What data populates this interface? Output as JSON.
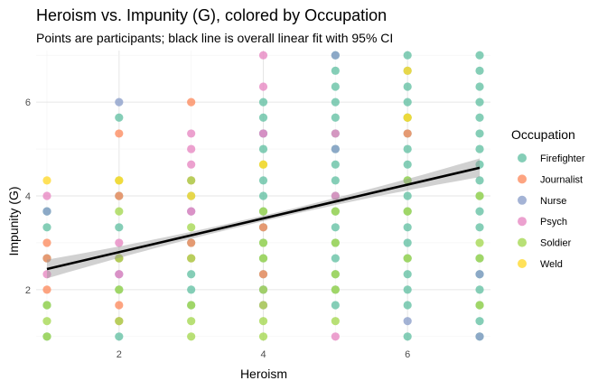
{
  "chart_data": {
    "type": "scatter",
    "title": "Heroism vs. Impunity (G), colored by Occupation",
    "subtitle": "Points are participants; black line is overall linear fit with 95% CI",
    "xlabel": "Heroism",
    "ylabel": "Impunity (G)",
    "xlim": [
      0.85,
      7.15
    ],
    "ylim": [
      0.9,
      7.1
    ],
    "x_ticks": [
      2,
      4,
      6
    ],
    "y_ticks": [
      2,
      4,
      6
    ],
    "legend": {
      "title": "Occupation",
      "position": "right",
      "entries": [
        {
          "name": "Firefighter",
          "color": "#66c2a5"
        },
        {
          "name": "Journalist",
          "color": "#fc8d62"
        },
        {
          "name": "Nurse",
          "color": "#8da0cb"
        },
        {
          "name": "Psych",
          "color": "#e78ac3"
        },
        {
          "name": "Soldier",
          "color": "#a6d854"
        },
        {
          "name": "Weld",
          "color": "#ffd92f"
        }
      ]
    },
    "fit": {
      "intercept": 2.08,
      "slope": 0.36,
      "ci_halfwidth_ends": 0.2,
      "ci_halfwidth_center": 0.06
    },
    "series": [
      {
        "name": "Firefighter",
        "points": [
          [
            1,
            3.67
          ],
          [
            1,
            3.33
          ],
          [
            1,
            2.67
          ],
          [
            1,
            1.67
          ],
          [
            1,
            1
          ],
          [
            2,
            5.67
          ],
          [
            2,
            4
          ],
          [
            2,
            3.33
          ],
          [
            2,
            2.67
          ],
          [
            2,
            2
          ],
          [
            2,
            1
          ],
          [
            3,
            4
          ],
          [
            3,
            3
          ],
          [
            3,
            2.33
          ],
          [
            3,
            2
          ],
          [
            3,
            1.67
          ],
          [
            4,
            6
          ],
          [
            4,
            5.67
          ],
          [
            4,
            5.33
          ],
          [
            4,
            5
          ],
          [
            4,
            4.33
          ],
          [
            4,
            4
          ],
          [
            4,
            3.67
          ],
          [
            4,
            3.33
          ],
          [
            4,
            3
          ],
          [
            4,
            2.67
          ],
          [
            4,
            2.33
          ],
          [
            4,
            2
          ],
          [
            4,
            1.67
          ],
          [
            5,
            7
          ],
          [
            5,
            6.67
          ],
          [
            5,
            6.33
          ],
          [
            5,
            6
          ],
          [
            5,
            5.67
          ],
          [
            5,
            5.33
          ],
          [
            5,
            5
          ],
          [
            5,
            4.67
          ],
          [
            5,
            4.33
          ],
          [
            5,
            4
          ],
          [
            5,
            3.67
          ],
          [
            5,
            3.33
          ],
          [
            5,
            3
          ],
          [
            5,
            2.67
          ],
          [
            5,
            2.33
          ],
          [
            5,
            2
          ],
          [
            5,
            1.67
          ],
          [
            6,
            7
          ],
          [
            6,
            6.67
          ],
          [
            6,
            6.33
          ],
          [
            6,
            6
          ],
          [
            6,
            5.67
          ],
          [
            6,
            5.33
          ],
          [
            6,
            5
          ],
          [
            6,
            4.67
          ],
          [
            6,
            4.33
          ],
          [
            6,
            4
          ],
          [
            6,
            3.67
          ],
          [
            6,
            3.33
          ],
          [
            6,
            3
          ],
          [
            6,
            2.67
          ],
          [
            6,
            2.33
          ],
          [
            6,
            2
          ],
          [
            6,
            1.67
          ],
          [
            6,
            1
          ],
          [
            7,
            7
          ],
          [
            7,
            6.67
          ],
          [
            7,
            6.33
          ],
          [
            7,
            6
          ],
          [
            7,
            5.67
          ],
          [
            7,
            5.33
          ],
          [
            7,
            5
          ],
          [
            7,
            4.67
          ],
          [
            7,
            4.33
          ],
          [
            7,
            4
          ],
          [
            7,
            3.67
          ],
          [
            7,
            3.33
          ],
          [
            7,
            2.67
          ],
          [
            7,
            2.33
          ],
          [
            7,
            2
          ],
          [
            7,
            1.67
          ],
          [
            7,
            1.33
          ],
          [
            7,
            1
          ]
        ]
      },
      {
        "name": "Journalist",
        "points": [
          [
            1,
            3
          ],
          [
            1,
            2.67
          ],
          [
            1,
            2
          ],
          [
            2,
            5.33
          ],
          [
            2,
            4
          ],
          [
            2,
            2.67
          ],
          [
            2,
            1.67
          ],
          [
            2,
            1.33
          ],
          [
            3,
            6
          ],
          [
            3,
            4.33
          ],
          [
            3,
            3
          ],
          [
            3,
            2.67
          ],
          [
            4,
            3.33
          ],
          [
            4,
            2.33
          ],
          [
            6,
            5.33
          ]
        ]
      },
      {
        "name": "Nurse",
        "points": [
          [
            1,
            3.67
          ],
          [
            2,
            6
          ],
          [
            2,
            2.33
          ],
          [
            3,
            3.67
          ],
          [
            4,
            5.33
          ],
          [
            4,
            2
          ],
          [
            5,
            7
          ],
          [
            5,
            5
          ],
          [
            6,
            1.33
          ],
          [
            7,
            2.33
          ],
          [
            7,
            1
          ]
        ]
      },
      {
        "name": "Psych",
        "points": [
          [
            1,
            4
          ],
          [
            1,
            2.33
          ],
          [
            2,
            3
          ],
          [
            2,
            2.33
          ],
          [
            3,
            5.33
          ],
          [
            3,
            5
          ],
          [
            3,
            4.67
          ],
          [
            3,
            3.67
          ],
          [
            4,
            7
          ],
          [
            4,
            6.33
          ],
          [
            4,
            5.33
          ],
          [
            4,
            1.67
          ],
          [
            5,
            5.33
          ],
          [
            5,
            4
          ],
          [
            5,
            1
          ]
        ]
      },
      {
        "name": "Soldier",
        "points": [
          [
            1,
            1.67
          ],
          [
            1,
            1.33
          ],
          [
            1,
            1
          ],
          [
            2,
            4.33
          ],
          [
            2,
            3.67
          ],
          [
            2,
            2.67
          ],
          [
            2,
            2
          ],
          [
            2,
            1.33
          ],
          [
            3,
            4.33
          ],
          [
            3,
            3.33
          ],
          [
            3,
            2.67
          ],
          [
            3,
            1.67
          ],
          [
            3,
            1.33
          ],
          [
            3,
            1
          ],
          [
            4,
            4.67
          ],
          [
            4,
            3.67
          ],
          [
            4,
            3
          ],
          [
            4,
            2.67
          ],
          [
            4,
            2
          ],
          [
            4,
            1.67
          ],
          [
            4,
            1.33
          ],
          [
            4,
            1
          ],
          [
            5,
            3.67
          ],
          [
            5,
            3
          ],
          [
            5,
            2.33
          ],
          [
            5,
            2
          ],
          [
            5,
            1.33
          ],
          [
            6,
            5.67
          ],
          [
            6,
            4.33
          ],
          [
            6,
            3.67
          ],
          [
            6,
            2.67
          ],
          [
            7,
            4
          ],
          [
            7,
            3
          ],
          [
            7,
            2.67
          ],
          [
            7,
            1.67
          ]
        ]
      },
      {
        "name": "Weld",
        "points": [
          [
            1,
            4.33
          ],
          [
            2,
            4.33
          ],
          [
            3,
            4
          ],
          [
            4,
            4.67
          ],
          [
            6,
            6.67
          ],
          [
            6,
            5.67
          ]
        ]
      }
    ]
  }
}
